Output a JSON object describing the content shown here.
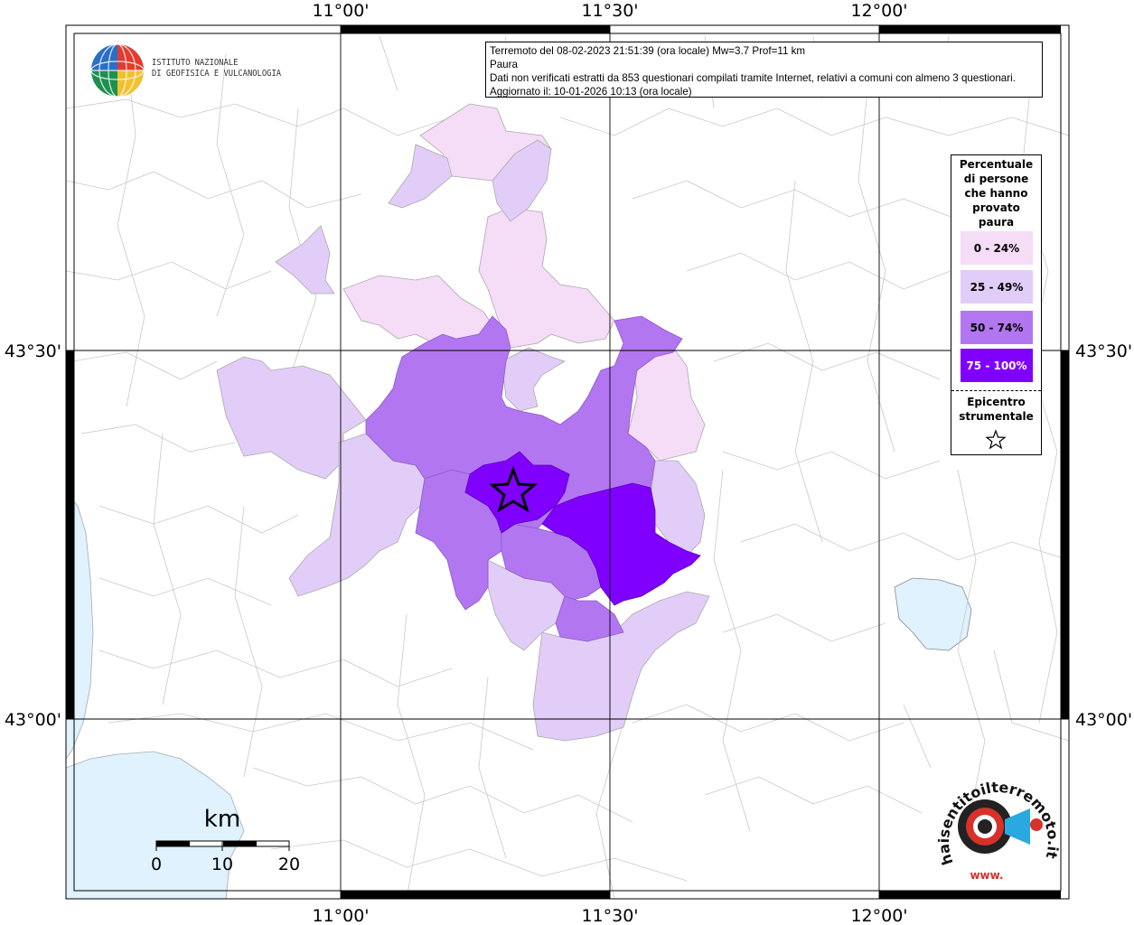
{
  "info": {
    "line1": "Terremoto del 08-02-2023 21:51:39 (ora locale) Mw=3.7 Prof=11 km",
    "line2": "Paura",
    "line3": "Dati non verificati estratti da 853 questionari compilati tramite Internet, relativi a comuni con almeno 3 questionari.",
    "line4": "Aggiornato il: 10-01-2026 10:13 (ora locale)"
  },
  "axes": {
    "top": [
      "11°00'",
      "11°30'",
      "12°00'"
    ],
    "bottom": [
      "11°00'",
      "11°30'",
      "12°00'"
    ],
    "left": [
      "43°30'",
      "43°00'"
    ],
    "right": [
      "43°30'",
      "43°00'"
    ]
  },
  "scalebar": {
    "unit": "km",
    "labels": [
      "0",
      "10",
      "20"
    ]
  },
  "legend": {
    "title_lines": [
      "Percentuale",
      "di persone",
      "che hanno",
      "provato",
      "paura"
    ],
    "classes": [
      {
        "label": "0 - 24%",
        "color": "#f5dcf7"
      },
      {
        "label": "25 - 49%",
        "color": "#e2cdf8"
      },
      {
        "label": "50 - 74%",
        "color": "#b277f0"
      },
      {
        "label": "75 - 100%",
        "color": "#8000ff"
      }
    ],
    "epicentre_lines": [
      "Epicentro",
      "strumentale"
    ]
  },
  "logos": {
    "ingv_line1": "ISTITUTO NAZIONALE",
    "ingv_line2": "DI GEOFISICA E VULCANOLOGIA",
    "hst_text": "haisentitoilterremoto.it",
    "hst_www": "www."
  },
  "colors": {
    "sea": "#dff2fd",
    "class1": "#f5dcf7",
    "class2": "#e2cdf8",
    "class3": "#b277f0",
    "class4": "#8000ff"
  }
}
